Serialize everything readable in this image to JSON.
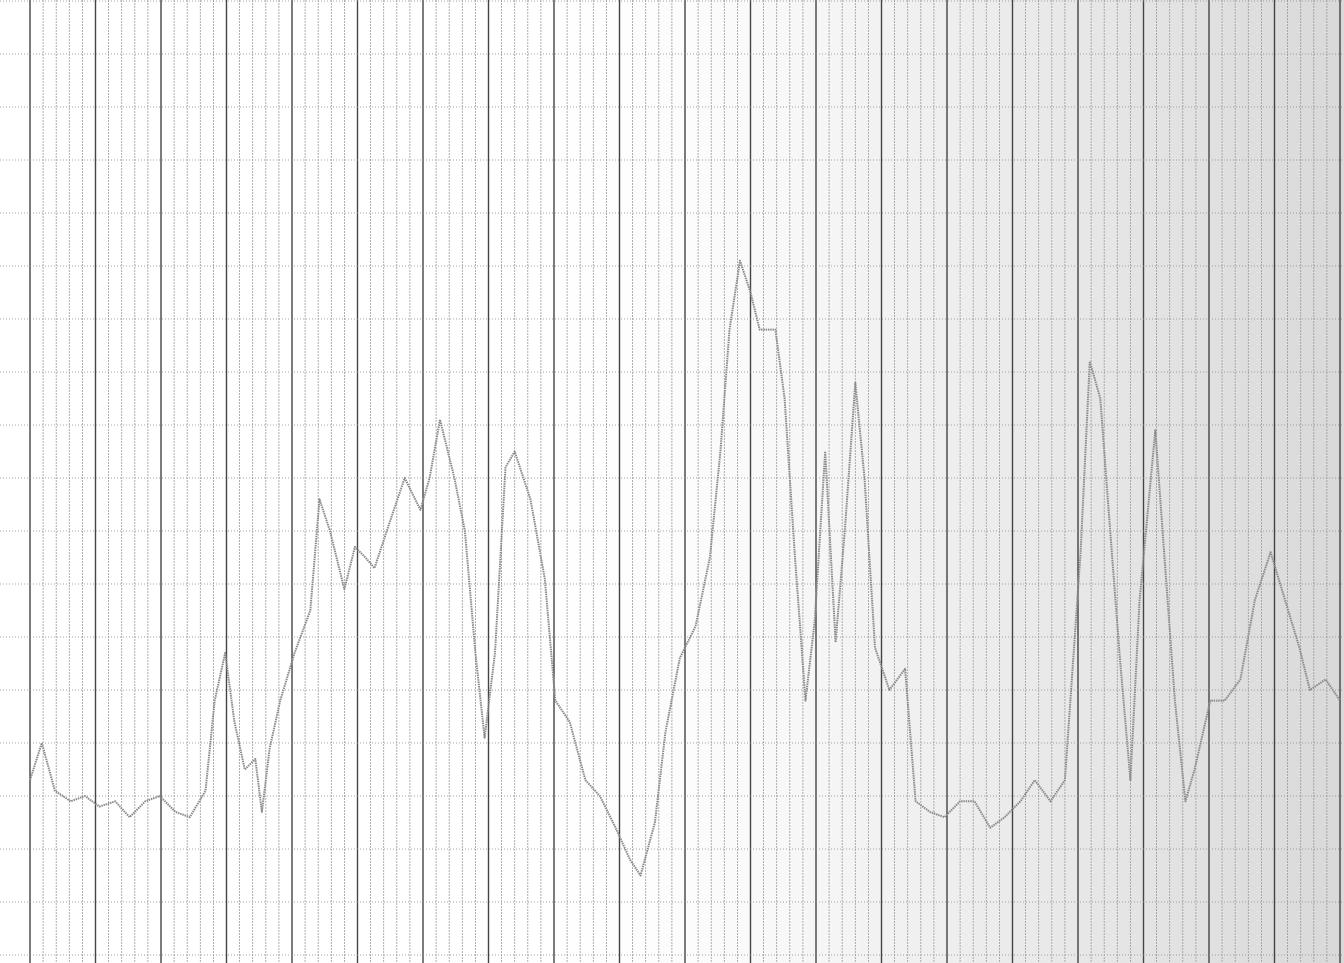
{
  "chart_data": {
    "type": "line",
    "color": "#8a8a8a",
    "grid": true,
    "xlim": [
      0,
      100
    ],
    "ylim": [
      0,
      18
    ],
    "x": [
      0,
      0.9,
      1.9,
      3.1,
      4.2,
      5.3,
      6.5,
      7.6,
      8.8,
      9.9,
      11.1,
      12.2,
      13.4,
      14.1,
      14.9,
      15.6,
      16.4,
      17.2,
      17.7,
      18.3,
      19.1,
      20.2,
      21.4,
      22.1,
      22.9,
      24.0,
      24.8,
      25.6,
      26.3,
      27.5,
      28.6,
      29.8,
      30.5,
      31.3,
      32.4,
      33.2,
      34.0,
      34.7,
      35.5,
      36.3,
      37.0,
      38.2,
      39.3,
      40.1,
      41.2,
      42.4,
      43.5,
      44.7,
      45.8,
      46.6,
      47.7,
      48.5,
      49.6,
      50.8,
      51.9,
      52.7,
      53.4,
      54.2,
      55.0,
      55.7,
      56.9,
      57.6,
      58.4,
      59.2,
      59.9,
      60.7,
      61.5,
      62.2,
      63.0,
      63.7,
      64.5,
      65.6,
      66.8,
      67.6,
      68.7,
      69.8,
      71.0,
      72.1,
      73.3,
      74.4,
      75.6,
      76.7,
      77.9,
      79.0,
      80.2,
      80.9,
      81.7,
      82.4,
      83.2,
      84.0,
      84.7,
      85.9,
      86.6,
      87.4,
      88.2,
      88.9,
      90.1,
      91.2,
      92.4,
      93.5,
      94.7,
      95.8,
      96.9,
      97.7,
      98.9,
      100
    ],
    "values": [
      3.3,
      4.0,
      3.1,
      2.9,
      3.0,
      2.8,
      2.9,
      2.6,
      2.9,
      3.0,
      2.7,
      2.6,
      3.1,
      4.8,
      5.7,
      4.4,
      3.5,
      3.7,
      2.7,
      3.9,
      4.8,
      5.7,
      6.5,
      8.6,
      8.0,
      6.9,
      7.7,
      7.5,
      7.3,
      8.2,
      9.0,
      8.4,
      9.0,
      10.1,
      9.0,
      8.0,
      5.7,
      4.1,
      5.7,
      9.2,
      9.5,
      8.6,
      7.1,
      4.8,
      4.4,
      3.3,
      3.0,
      2.4,
      1.8,
      1.5,
      2.5,
      4.2,
      5.6,
      6.2,
      7.5,
      9.5,
      11.8,
      13.1,
      12.5,
      11.8,
      11.8,
      10.5,
      7.5,
      4.8,
      6.3,
      9.5,
      5.9,
      8.0,
      10.8,
      9.0,
      5.8,
      5.0,
      5.4,
      2.9,
      2.7,
      2.6,
      2.9,
      2.9,
      2.4,
      2.6,
      2.9,
      3.3,
      2.9,
      3.3,
      7.6,
      11.2,
      10.5,
      8.2,
      5.6,
      3.3,
      6.7,
      9.9,
      7.5,
      4.8,
      2.9,
      3.5,
      4.8,
      4.8,
      5.2,
      6.7,
      7.6,
      6.7,
      5.8,
      5.0,
      5.2,
      4.8
    ]
  }
}
